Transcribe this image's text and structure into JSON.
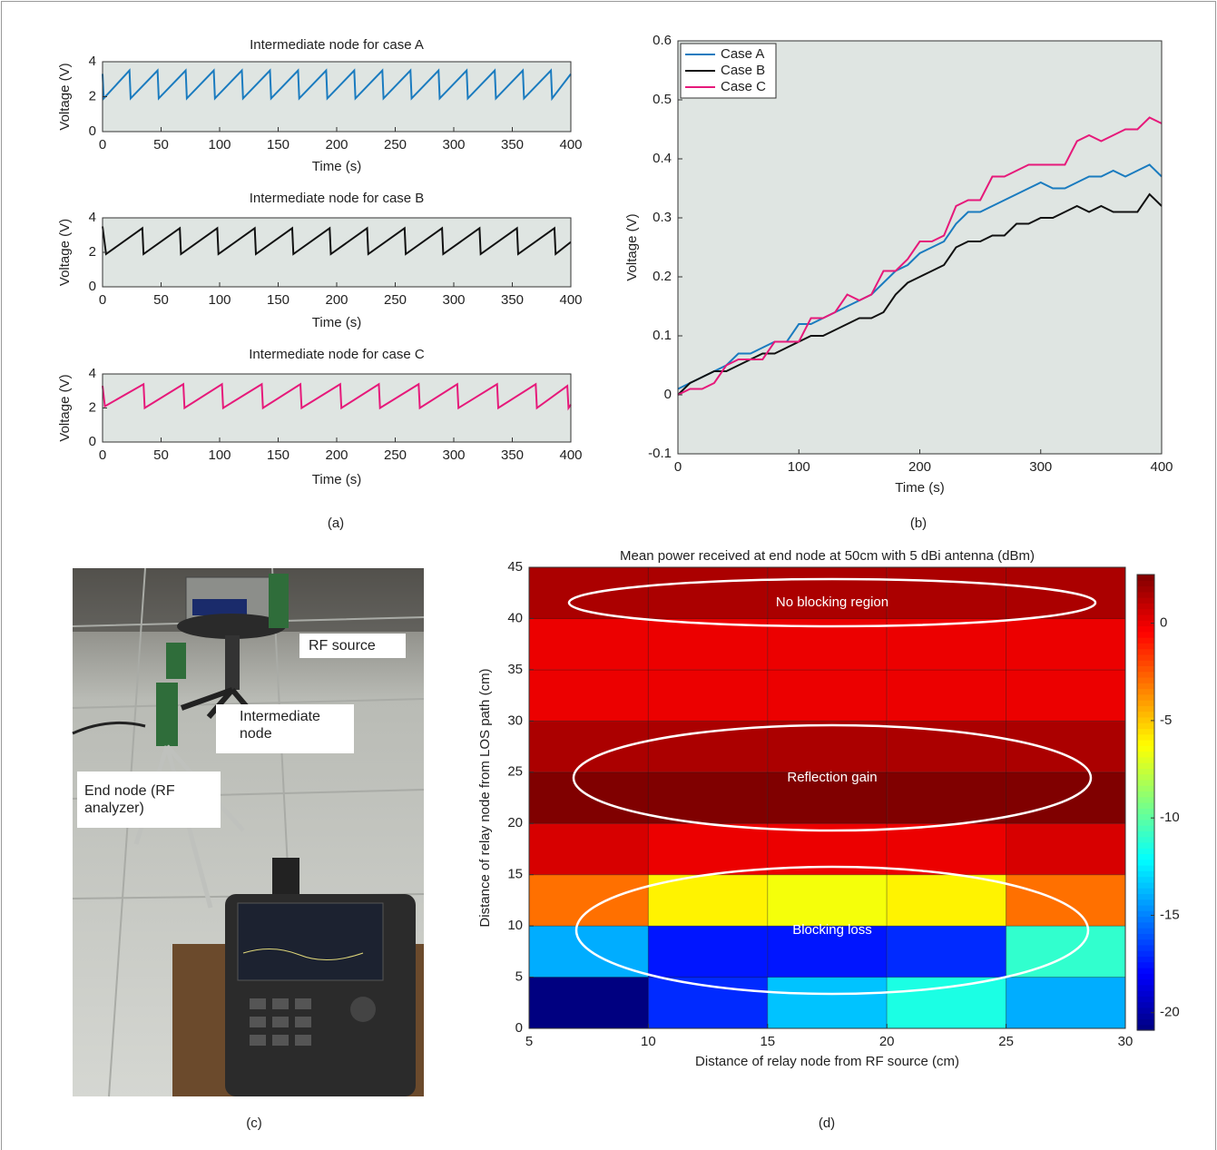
{
  "chart_data": [
    {
      "type": "line",
      "title": "Intermediate node for case A",
      "xlabel": "Time (s)",
      "ylabel": "Voltage (V)",
      "x": [
        0,
        1,
        23,
        24,
        47,
        48,
        71,
        72,
        95,
        96,
        119,
        120,
        143,
        144,
        167,
        168,
        191,
        192,
        215,
        216,
        239,
        240,
        263,
        264,
        287,
        288,
        311,
        312,
        335,
        336,
        359,
        360,
        383,
        384,
        400
      ],
      "values": [
        3.3,
        1.9,
        3.5,
        1.9,
        3.5,
        1.9,
        3.5,
        1.9,
        3.5,
        1.9,
        3.5,
        1.9,
        3.5,
        1.9,
        3.5,
        1.9,
        3.5,
        1.9,
        3.5,
        1.9,
        3.5,
        1.9,
        3.5,
        1.9,
        3.5,
        1.9,
        3.5,
        1.9,
        3.5,
        1.9,
        3.5,
        1.9,
        3.5,
        1.9,
        3.3
      ],
      "color": "#1a7bbf",
      "xlim": [
        0,
        400
      ],
      "ylim": [
        0,
        4
      ],
      "xticks": [
        0,
        50,
        100,
        150,
        200,
        250,
        300,
        350,
        400
      ],
      "yticks": [
        0,
        2,
        4
      ]
    },
    {
      "type": "line",
      "title": "Intermediate node for case B",
      "xlabel": "Time (s)",
      "ylabel": "Voltage (V)",
      "x": [
        0,
        3,
        34,
        35,
        66,
        67,
        98,
        99,
        130,
        131,
        162,
        163,
        194,
        195,
        226,
        227,
        258,
        259,
        290,
        291,
        322,
        323,
        354,
        355,
        386,
        387,
        400
      ],
      "values": [
        3.5,
        1.9,
        3.4,
        1.9,
        3.4,
        1.9,
        3.4,
        1.9,
        3.4,
        1.9,
        3.4,
        1.9,
        3.4,
        1.9,
        3.4,
        1.9,
        3.4,
        1.9,
        3.4,
        1.9,
        3.4,
        1.9,
        3.4,
        1.9,
        3.4,
        1.9,
        2.6
      ],
      "color": "#111111",
      "xlim": [
        0,
        400
      ],
      "ylim": [
        0,
        4
      ],
      "xticks": [
        0,
        50,
        100,
        150,
        200,
        250,
        300,
        350,
        400
      ],
      "yticks": [
        0,
        2,
        4
      ]
    },
    {
      "type": "line",
      "title": "Intermediate node for case C",
      "xlabel": "Time (s)",
      "ylabel": "Voltage (V)",
      "x": [
        0,
        2,
        35,
        36,
        69,
        70,
        102,
        103,
        136,
        137,
        169,
        170,
        203,
        204,
        236,
        237,
        270,
        271,
        303,
        304,
        337,
        338,
        370,
        371,
        397,
        398,
        400
      ],
      "values": [
        3.3,
        2.1,
        3.4,
        2.0,
        3.4,
        2.0,
        3.4,
        2.0,
        3.4,
        2.0,
        3.4,
        2.0,
        3.4,
        2.0,
        3.4,
        2.0,
        3.4,
        2.0,
        3.4,
        2.0,
        3.4,
        2.0,
        3.4,
        2.0,
        3.3,
        2.0,
        2.2
      ],
      "color": "#e6197a",
      "xlim": [
        0,
        400
      ],
      "ylim": [
        0,
        4
      ],
      "xticks": [
        0,
        50,
        100,
        150,
        200,
        250,
        300,
        350,
        400
      ],
      "yticks": [
        0,
        2,
        4
      ]
    },
    {
      "type": "line",
      "xlabel": "Time (s)",
      "ylabel": "Voltage (V)",
      "legend": "upper left",
      "x": [
        0,
        10,
        20,
        30,
        40,
        50,
        60,
        70,
        80,
        90,
        100,
        110,
        120,
        130,
        140,
        150,
        160,
        170,
        180,
        190,
        200,
        210,
        220,
        230,
        240,
        250,
        260,
        270,
        280,
        290,
        300,
        310,
        320,
        330,
        340,
        350,
        360,
        370,
        380,
        390,
        400
      ],
      "series": [
        {
          "name": "Case A",
          "color": "#1a7bbf",
          "values": [
            0.01,
            0.02,
            0.03,
            0.04,
            0.05,
            0.07,
            0.07,
            0.08,
            0.09,
            0.09,
            0.12,
            0.12,
            0.13,
            0.14,
            0.15,
            0.16,
            0.17,
            0.19,
            0.21,
            0.22,
            0.24,
            0.25,
            0.26,
            0.29,
            0.31,
            0.31,
            0.32,
            0.33,
            0.34,
            0.35,
            0.36,
            0.35,
            0.35,
            0.36,
            0.37,
            0.37,
            0.38,
            0.37,
            0.38,
            0.39,
            0.37
          ]
        },
        {
          "name": "Case B",
          "color": "#111111",
          "values": [
            0,
            0.02,
            0.03,
            0.04,
            0.04,
            0.05,
            0.06,
            0.07,
            0.07,
            0.08,
            0.09,
            0.1,
            0.1,
            0.11,
            0.12,
            0.13,
            0.13,
            0.14,
            0.17,
            0.19,
            0.2,
            0.21,
            0.22,
            0.25,
            0.26,
            0.26,
            0.27,
            0.27,
            0.29,
            0.29,
            0.3,
            0.3,
            0.31,
            0.32,
            0.31,
            0.32,
            0.31,
            0.31,
            0.31,
            0.34,
            0.32
          ]
        },
        {
          "name": "Case C",
          "color": "#e6197a",
          "values": [
            0,
            0.01,
            0.01,
            0.02,
            0.05,
            0.06,
            0.06,
            0.06,
            0.09,
            0.09,
            0.09,
            0.13,
            0.13,
            0.14,
            0.17,
            0.16,
            0.17,
            0.21,
            0.21,
            0.23,
            0.26,
            0.26,
            0.27,
            0.32,
            0.33,
            0.33,
            0.37,
            0.37,
            0.38,
            0.39,
            0.39,
            0.39,
            0.39,
            0.43,
            0.44,
            0.43,
            0.44,
            0.45,
            0.45,
            0.47,
            0.46
          ]
        }
      ],
      "xlim": [
        0,
        400
      ],
      "ylim": [
        -0.1,
        0.6
      ],
      "xticks": [
        0,
        100,
        200,
        300,
        400
      ],
      "yticks": [
        -0.1,
        0,
        0.1,
        0.2,
        0.3,
        0.4,
        0.5,
        0.6
      ]
    },
    {
      "type": "heatmap",
      "title": "Mean power received at end node at 50cm with 5 dBi antenna (dBm)",
      "xlabel": "Distance of relay node from RF source (cm)",
      "ylabel": "Distance of relay node from LOS path (cm)",
      "xbins": [
        5,
        10,
        15,
        20,
        25,
        30
      ],
      "ybins": [
        0,
        5,
        10,
        15,
        20,
        25,
        30,
        35,
        40,
        45
      ],
      "values": [
        [
          -21,
          -17,
          -13.5,
          -11.5,
          -14
        ],
        [
          -14,
          -17.5,
          -17.5,
          -17,
          -11
        ],
        [
          -3,
          -6,
          -6.5,
          -6,
          -3
        ],
        [
          0.5,
          0,
          0,
          0,
          0.5
        ],
        [
          2.5,
          2.5,
          2.5,
          2.5,
          2.5
        ],
        [
          1.5,
          1.5,
          1.5,
          1.5,
          1.5
        ],
        [
          0,
          0,
          0,
          0,
          0
        ],
        [
          0,
          0,
          0,
          0,
          0
        ],
        [
          1.5,
          1.5,
          1.5,
          1.5,
          1.5
        ]
      ],
      "xlim": [
        5,
        30
      ],
      "ylim": [
        0,
        45
      ],
      "xticks": [
        5,
        10,
        15,
        20,
        25,
        30
      ],
      "yticks": [
        0,
        5,
        10,
        15,
        20,
        25,
        30,
        35,
        40,
        45
      ],
      "clim": [
        -20.9,
        2.5
      ],
      "cticks": [
        0,
        -5,
        -10,
        -15,
        -20
      ],
      "colormap": "jet",
      "annotations": [
        "No blocking region",
        "Reflection gain",
        "Blocking loss"
      ]
    }
  ],
  "photo": {
    "labels": [
      "RF source",
      "Intermediate node",
      "End node (RF analyzer)"
    ]
  },
  "captions": [
    "(a)",
    "(b)",
    "(c)",
    "(d)"
  ]
}
